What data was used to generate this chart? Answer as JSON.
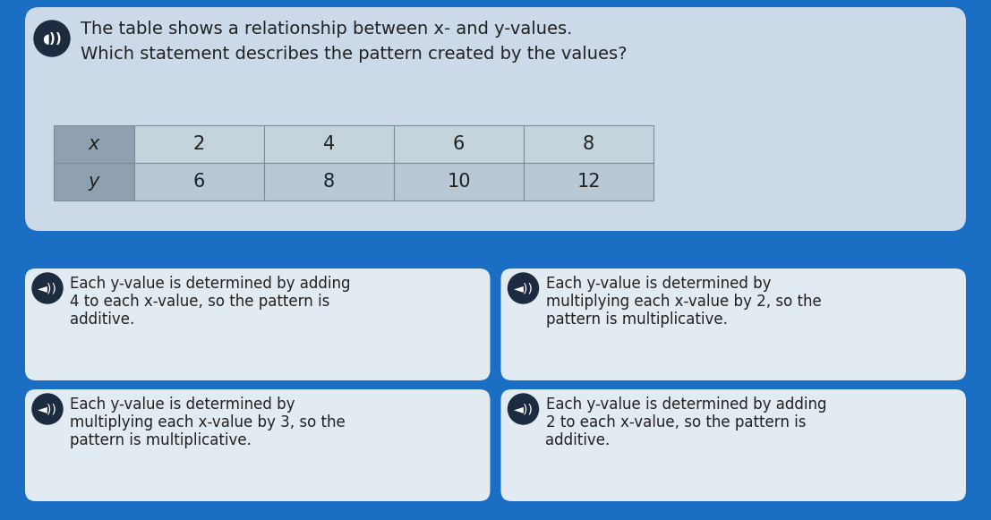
{
  "bg_color": "#1a6fc4",
  "question_box_color": "#ccd9e8",
  "table_header_color": "#8fa0b0",
  "table_cell_color_light": "#c5d3dc",
  "table_cell_color_mid": "#b8c8d4",
  "answer_box_color": "#e2eaf2",
  "title_line1": "The table shows a relationship between x- and y-values.",
  "title_line2": "Which statement describes the pattern created by the values?",
  "table_headers": [
    "x",
    "2",
    "4",
    "6",
    "8"
  ],
  "table_row2": [
    "y",
    "6",
    "8",
    "10",
    "12"
  ],
  "answers": [
    [
      "Each y-value is determined by adding",
      "4 to each x-value, so the pattern is",
      "additive."
    ],
    [
      "Each y-value is determined by",
      "multiplying each x-value by 2, so the",
      "pattern is multiplicative."
    ],
    [
      "Each y-value is determined by",
      "multiplying each x-value by 3, so the",
      "pattern is multiplicative."
    ],
    [
      "Each y-value is determined by adding",
      "2 to each x-value, so the pattern is",
      "additive."
    ]
  ],
  "icon_bg": "#1c2b40",
  "icon_fg": "#ffffff",
  "text_color": "#222222",
  "title_fontsize": 14,
  "table_fontsize": 15,
  "answer_fontsize": 12
}
